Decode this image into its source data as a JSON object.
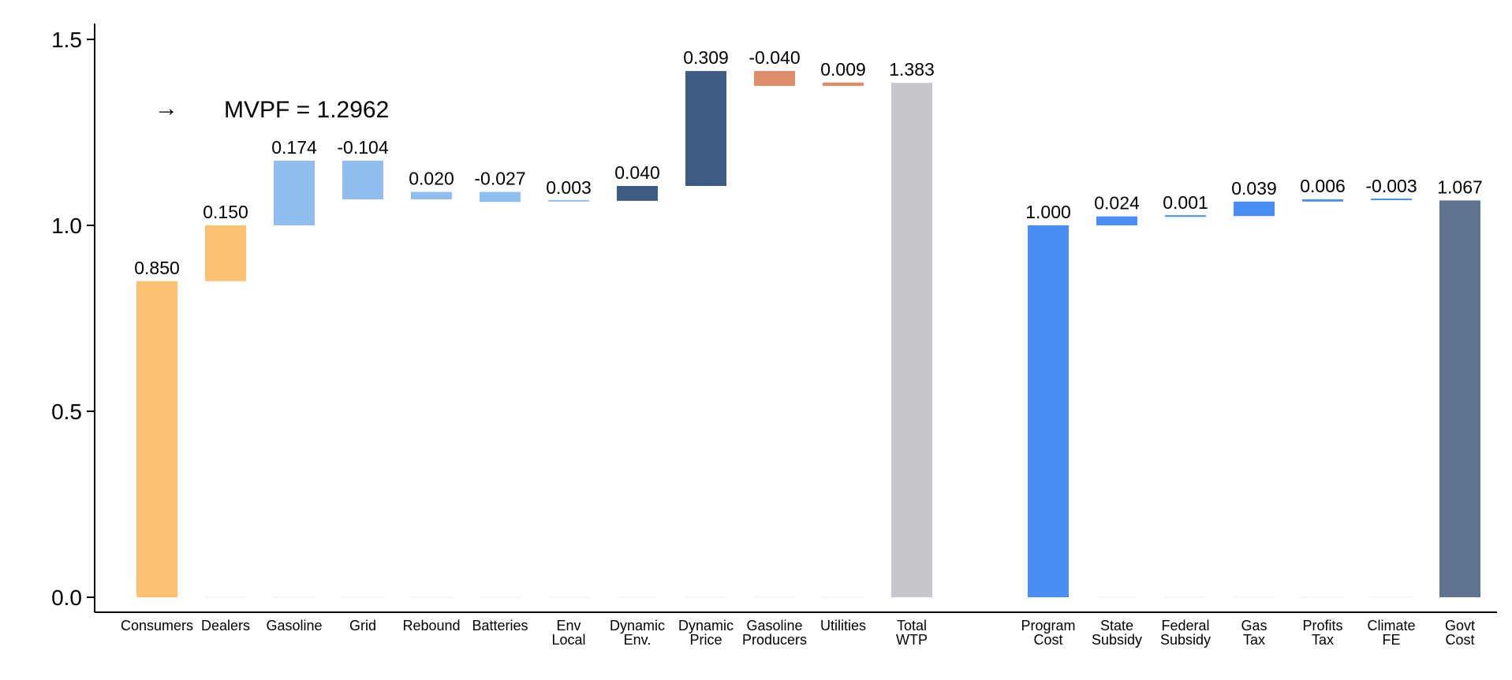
{
  "chart_data": {
    "type": "bar",
    "subtype": "waterfall",
    "title": "",
    "xlabel": "",
    "ylabel": "",
    "ylim": [
      0,
      1.5
    ],
    "yticks": [
      "0.0",
      "0.5",
      "1.0",
      "1.5"
    ],
    "grid": false,
    "annotation": "MVPF = 1.2962",
    "bars": [
      {
        "label": [
          "Consumers"
        ],
        "base": 0,
        "top": 0.85,
        "value_label": "0.850",
        "color": "#fcc271"
      },
      {
        "label": [
          "Dealers"
        ],
        "base": 0.85,
        "top": 1.0,
        "value_label": "0.150",
        "color": "#fcc271"
      },
      {
        "label": [
          "Gasoline"
        ],
        "base": 1.0,
        "top": 1.174,
        "value_label": "0.174",
        "color": "#90bfef"
      },
      {
        "label": [
          "Grid"
        ],
        "base": 1.07,
        "top": 1.174,
        "value_label": "-0.104",
        "color": "#90bfef"
      },
      {
        "label": [
          "Rebound"
        ],
        "base": 1.07,
        "top": 1.09,
        "value_label": "0.020",
        "color": "#90bfef"
      },
      {
        "label": [
          "Batteries"
        ],
        "base": 1.063,
        "top": 1.09,
        "value_label": "-0.027",
        "color": "#90bfef"
      },
      {
        "label": [
          "Env",
          "Local"
        ],
        "base": 1.063,
        "top": 1.066,
        "value_label": "0.003",
        "color": "#90bfef"
      },
      {
        "label": [
          "Dynamic",
          "Env."
        ],
        "base": 1.066,
        "top": 1.106,
        "value_label": "0.040",
        "color": "#3d5c82"
      },
      {
        "label": [
          "Dynamic",
          "Price"
        ],
        "base": 1.106,
        "top": 1.415,
        "value_label": "0.309",
        "color": "#3d5c82"
      },
      {
        "label": [
          "Gasoline",
          "Producers"
        ],
        "base": 1.375,
        "top": 1.415,
        "value_label": "-0.040",
        "color": "#df8c69"
      },
      {
        "label": [
          "Utilities"
        ],
        "base": 1.375,
        "top": 1.384,
        "value_label": "0.009",
        "color": "#df8c69"
      },
      {
        "label": [
          "Total",
          "WTP"
        ],
        "base": 0,
        "top": 1.383,
        "value_label": "1.383",
        "color": "#c6c7cc"
      },
      {
        "label": [
          "Program",
          "Cost"
        ],
        "base": 0,
        "top": 1.0,
        "value_label": "1.000",
        "color": "#4a8ef4"
      },
      {
        "label": [
          "State",
          "Subsidy"
        ],
        "base": 1.0,
        "top": 1.024,
        "value_label": "0.024",
        "color": "#4a8ef4"
      },
      {
        "label": [
          "Federal",
          "Subsidy"
        ],
        "base": 1.024,
        "top": 1.025,
        "value_label": "0.001",
        "color": "#4a8ef4"
      },
      {
        "label": [
          "Gas",
          "Tax"
        ],
        "base": 1.025,
        "top": 1.064,
        "value_label": "0.039",
        "color": "#4a8ef4"
      },
      {
        "label": [
          "Profits",
          "Tax"
        ],
        "base": 1.064,
        "top": 1.07,
        "value_label": "0.006",
        "color": "#4a8ef4"
      },
      {
        "label": [
          "Climate",
          "FE"
        ],
        "base": 1.067,
        "top": 1.07,
        "value_label": "-0.003",
        "color": "#4a8ef4"
      },
      {
        "label": [
          "Govt",
          "Cost"
        ],
        "base": 0,
        "top": 1.067,
        "value_label": "1.067",
        "color": "#5f7392"
      }
    ]
  }
}
